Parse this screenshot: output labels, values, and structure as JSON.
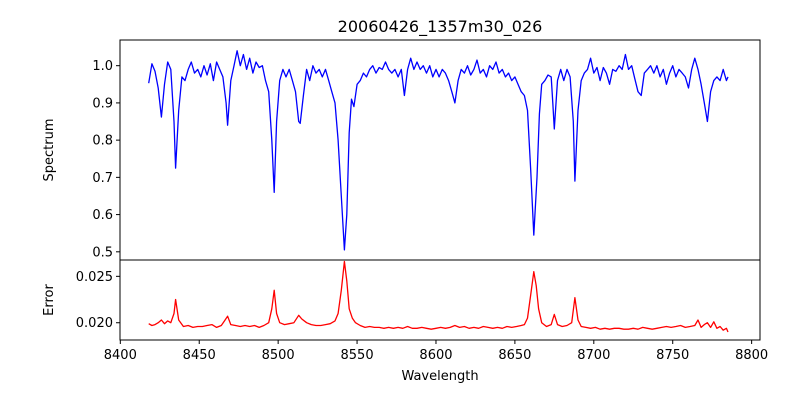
{
  "chart_data": [
    {
      "type": "line",
      "title": "20060426_1357m30_026",
      "xlabel": "",
      "ylabel": "Spectrum",
      "xlim": [
        8399.8,
        8805.3
      ],
      "ylim": [
        0.478,
        1.069
      ],
      "yticks": [
        0.5,
        0.6,
        0.7,
        0.8,
        0.9,
        1.0
      ],
      "ytick_labels": [
        "0.5",
        "0.6",
        "0.7",
        "0.8",
        "0.9",
        "1.0"
      ],
      "grid": false,
      "color": "#0000ff",
      "points": [
        [
          8418,
          0.953
        ],
        [
          8420,
          1.005
        ],
        [
          8422,
          0.985
        ],
        [
          8424,
          0.94
        ],
        [
          8426,
          0.862
        ],
        [
          8428,
          0.95
        ],
        [
          8430,
          1.01
        ],
        [
          8432,
          0.99
        ],
        [
          8434,
          0.85
        ],
        [
          8435,
          0.725
        ],
        [
          8437,
          0.88
        ],
        [
          8439,
          0.97
        ],
        [
          8441,
          0.96
        ],
        [
          8443,
          0.99
        ],
        [
          8445,
          1.01
        ],
        [
          8447,
          0.98
        ],
        [
          8449,
          0.99
        ],
        [
          8451,
          0.97
        ],
        [
          8453,
          1.0
        ],
        [
          8455,
          0.975
        ],
        [
          8457,
          1.005
        ],
        [
          8459,
          0.96
        ],
        [
          8461,
          1.01
        ],
        [
          8463,
          0.99
        ],
        [
          8465,
          0.97
        ],
        [
          8467,
          0.9
        ],
        [
          8468,
          0.84
        ],
        [
          8470,
          0.96
        ],
        [
          8472,
          1.0
        ],
        [
          8474,
          1.04
        ],
        [
          8476,
          1.0
        ],
        [
          8478,
          1.03
        ],
        [
          8480,
          0.99
        ],
        [
          8482,
          1.02
        ],
        [
          8484,
          0.98
        ],
        [
          8486,
          1.01
        ],
        [
          8488,
          0.995
        ],
        [
          8490,
          1.0
        ],
        [
          8492,
          0.96
        ],
        [
          8494,
          0.93
        ],
        [
          8496,
          0.8
        ],
        [
          8497.5,
          0.66
        ],
        [
          8499,
          0.85
        ],
        [
          8501,
          0.96
        ],
        [
          8503,
          0.99
        ],
        [
          8505,
          0.97
        ],
        [
          8507,
          0.99
        ],
        [
          8509,
          0.96
        ],
        [
          8511,
          0.93
        ],
        [
          8513,
          0.85
        ],
        [
          8514,
          0.845
        ],
        [
          8516,
          0.92
        ],
        [
          8518,
          0.99
        ],
        [
          8520,
          0.96
        ],
        [
          8522,
          1.0
        ],
        [
          8524,
          0.98
        ],
        [
          8526,
          0.99
        ],
        [
          8528,
          0.97
        ],
        [
          8530,
          0.99
        ],
        [
          8532,
          0.96
        ],
        [
          8534,
          0.93
        ],
        [
          8536,
          0.9
        ],
        [
          8538,
          0.8
        ],
        [
          8540,
          0.65
        ],
        [
          8542,
          0.505
        ],
        [
          8543.5,
          0.6
        ],
        [
          8545,
          0.82
        ],
        [
          8546.5,
          0.91
        ],
        [
          8548,
          0.89
        ],
        [
          8550,
          0.95
        ],
        [
          8552,
          0.96
        ],
        [
          8554,
          0.98
        ],
        [
          8556,
          0.97
        ],
        [
          8558,
          0.99
        ],
        [
          8560,
          1.0
        ],
        [
          8562,
          0.98
        ],
        [
          8564,
          0.995
        ],
        [
          8566,
          0.99
        ],
        [
          8568,
          1.01
        ],
        [
          8570,
          0.99
        ],
        [
          8572,
          0.98
        ],
        [
          8574,
          0.99
        ],
        [
          8576,
          0.97
        ],
        [
          8578,
          0.99
        ],
        [
          8580,
          0.92
        ],
        [
          8582,
          0.99
        ],
        [
          8584,
          1.02
        ],
        [
          8586,
          0.99
        ],
        [
          8588,
          1.01
        ],
        [
          8590,
          0.99
        ],
        [
          8592,
          1.0
        ],
        [
          8594,
          0.98
        ],
        [
          8596,
          1.0
        ],
        [
          8598,
          0.97
        ],
        [
          8600,
          0.99
        ],
        [
          8602,
          0.97
        ],
        [
          8604,
          0.99
        ],
        [
          8606,
          0.98
        ],
        [
          8608,
          0.96
        ],
        [
          8610,
          0.93
        ],
        [
          8612,
          0.9
        ],
        [
          8614,
          0.96
        ],
        [
          8616,
          0.99
        ],
        [
          8618,
          0.98
        ],
        [
          8620,
          1.0
        ],
        [
          8622,
          0.975
        ],
        [
          8624,
          0.99
        ],
        [
          8626,
          1.015
        ],
        [
          8628,
          0.98
        ],
        [
          8630,
          0.99
        ],
        [
          8632,
          0.97
        ],
        [
          8634,
          1.0
        ],
        [
          8636,
          0.99
        ],
        [
          8638,
          1.01
        ],
        [
          8640,
          0.98
        ],
        [
          8642,
          0.99
        ],
        [
          8644,
          0.97
        ],
        [
          8646,
          0.98
        ],
        [
          8648,
          0.96
        ],
        [
          8650,
          0.97
        ],
        [
          8652,
          0.95
        ],
        [
          8654,
          0.93
        ],
        [
          8656,
          0.92
        ],
        [
          8658,
          0.88
        ],
        [
          8660,
          0.72
        ],
        [
          8662,
          0.545
        ],
        [
          8664,
          0.7
        ],
        [
          8665.5,
          0.87
        ],
        [
          8667,
          0.95
        ],
        [
          8669,
          0.96
        ],
        [
          8671,
          0.975
        ],
        [
          8673,
          0.97
        ],
        [
          8674,
          0.9
        ],
        [
          8675,
          0.83
        ],
        [
          8677,
          0.96
        ],
        [
          8679,
          0.99
        ],
        [
          8681,
          0.96
        ],
        [
          8683,
          0.99
        ],
        [
          8685,
          0.97
        ],
        [
          8687,
          0.85
        ],
        [
          8688,
          0.69
        ],
        [
          8690,
          0.88
        ],
        [
          8692,
          0.96
        ],
        [
          8694,
          0.98
        ],
        [
          8696,
          0.99
        ],
        [
          8698,
          1.02
        ],
        [
          8700,
          0.98
        ],
        [
          8702,
          0.995
        ],
        [
          8704,
          0.96
        ],
        [
          8706,
          0.995
        ],
        [
          8708,
          0.98
        ],
        [
          8710,
          0.95
        ],
        [
          8712,
          0.99
        ],
        [
          8714,
          0.985
        ],
        [
          8716,
          1.0
        ],
        [
          8718,
          0.99
        ],
        [
          8720,
          1.03
        ],
        [
          8722,
          0.99
        ],
        [
          8724,
          1.0
        ],
        [
          8726,
          0.965
        ],
        [
          8728,
          0.93
        ],
        [
          8730,
          0.92
        ],
        [
          8732,
          0.98
        ],
        [
          8734,
          0.99
        ],
        [
          8736,
          1.0
        ],
        [
          8738,
          0.98
        ],
        [
          8740,
          1.0
        ],
        [
          8742,
          0.97
        ],
        [
          8744,
          0.99
        ],
        [
          8746,
          0.95
        ],
        [
          8748,
          0.98
        ],
        [
          8750,
          1.0
        ],
        [
          8752,
          0.97
        ],
        [
          8754,
          0.99
        ],
        [
          8756,
          0.98
        ],
        [
          8758,
          0.97
        ],
        [
          8760,
          0.94
        ],
        [
          8762,
          0.99
        ],
        [
          8764,
          1.02
        ],
        [
          8766,
          0.99
        ],
        [
          8768,
          0.95
        ],
        [
          8770,
          0.9
        ],
        [
          8772,
          0.85
        ],
        [
          8774,
          0.93
        ],
        [
          8776,
          0.96
        ],
        [
          8778,
          0.97
        ],
        [
          8780,
          0.96
        ],
        [
          8782,
          0.99
        ],
        [
          8784,
          0.96
        ],
        [
          8785,
          0.97
        ]
      ]
    },
    {
      "type": "line",
      "title": "",
      "xlabel": "Wavelength",
      "ylabel": "Error",
      "xlim": [
        8399.8,
        8805.3
      ],
      "ylim": [
        0.01814,
        0.02676
      ],
      "xticks": [
        8400,
        8450,
        8500,
        8550,
        8600,
        8650,
        8700,
        8750,
        8800
      ],
      "xtick_labels": [
        "8400",
        "8450",
        "8500",
        "8550",
        "8600",
        "8650",
        "8700",
        "8750",
        "8800"
      ],
      "yticks": [
        0.02,
        0.025
      ],
      "ytick_labels": [
        "0.020",
        "0.025"
      ],
      "grid": false,
      "color": "#ff0000",
      "points": [
        [
          8418,
          0.0199
        ],
        [
          8420,
          0.0197
        ],
        [
          8422,
          0.0198
        ],
        [
          8424,
          0.02
        ],
        [
          8426,
          0.0203
        ],
        [
          8428,
          0.0199
        ],
        [
          8430,
          0.0202
        ],
        [
          8432,
          0.02
        ],
        [
          8434,
          0.021
        ],
        [
          8435,
          0.0225
        ],
        [
          8437,
          0.0203
        ],
        [
          8440,
          0.0196
        ],
        [
          8443,
          0.0197
        ],
        [
          8446,
          0.0195
        ],
        [
          8449,
          0.0196
        ],
        [
          8452,
          0.0196
        ],
        [
          8455,
          0.0197
        ],
        [
          8458,
          0.0198
        ],
        [
          8461,
          0.0195
        ],
        [
          8464,
          0.0197
        ],
        [
          8466,
          0.0202
        ],
        [
          8468,
          0.0207
        ],
        [
          8470,
          0.0198
        ],
        [
          8473,
          0.0197
        ],
        [
          8476,
          0.0196
        ],
        [
          8479,
          0.0197
        ],
        [
          8482,
          0.0196
        ],
        [
          8485,
          0.0197
        ],
        [
          8488,
          0.0195
        ],
        [
          8491,
          0.0197
        ],
        [
          8494,
          0.02
        ],
        [
          8496,
          0.0215
        ],
        [
          8497.5,
          0.0235
        ],
        [
          8499,
          0.021
        ],
        [
          8501,
          0.02
        ],
        [
          8504,
          0.0198
        ],
        [
          8507,
          0.0199
        ],
        [
          8510,
          0.02
        ],
        [
          8513,
          0.0208
        ],
        [
          8515,
          0.0204
        ],
        [
          8518,
          0.02
        ],
        [
          8521,
          0.0198
        ],
        [
          8524,
          0.0197
        ],
        [
          8527,
          0.0197
        ],
        [
          8530,
          0.0198
        ],
        [
          8533,
          0.0199
        ],
        [
          8536,
          0.0202
        ],
        [
          8538,
          0.021
        ],
        [
          8540,
          0.0235
        ],
        [
          8542,
          0.0266
        ],
        [
          8543.5,
          0.0245
        ],
        [
          8545,
          0.0215
        ],
        [
          8547,
          0.0205
        ],
        [
          8549,
          0.02
        ],
        [
          8552,
          0.0197
        ],
        [
          8555,
          0.0195
        ],
        [
          8558,
          0.0196
        ],
        [
          8561,
          0.0195
        ],
        [
          8564,
          0.0195
        ],
        [
          8567,
          0.0194
        ],
        [
          8570,
          0.0195
        ],
        [
          8573,
          0.0194
        ],
        [
          8576,
          0.0195
        ],
        [
          8579,
          0.0194
        ],
        [
          8582,
          0.0196
        ],
        [
          8585,
          0.0194
        ],
        [
          8588,
          0.0194
        ],
        [
          8591,
          0.0195
        ],
        [
          8594,
          0.0194
        ],
        [
          8597,
          0.0193
        ],
        [
          8600,
          0.0194
        ],
        [
          8603,
          0.0195
        ],
        [
          8606,
          0.0194
        ],
        [
          8609,
          0.0195
        ],
        [
          8612,
          0.0197
        ],
        [
          8615,
          0.0195
        ],
        [
          8618,
          0.0196
        ],
        [
          8621,
          0.0194
        ],
        [
          8624,
          0.0195
        ],
        [
          8627,
          0.0194
        ],
        [
          8630,
          0.0196
        ],
        [
          8633,
          0.0195
        ],
        [
          8636,
          0.0194
        ],
        [
          8639,
          0.0195
        ],
        [
          8642,
          0.0194
        ],
        [
          8645,
          0.0196
        ],
        [
          8648,
          0.0195
        ],
        [
          8651,
          0.0196
        ],
        [
          8654,
          0.0197
        ],
        [
          8656,
          0.0198
        ],
        [
          8658,
          0.0205
        ],
        [
          8660,
          0.023
        ],
        [
          8662,
          0.0255
        ],
        [
          8663.5,
          0.024
        ],
        [
          8665,
          0.0215
        ],
        [
          8667,
          0.02
        ],
        [
          8670,
          0.0196
        ],
        [
          8673,
          0.0198
        ],
        [
          8675,
          0.0209
        ],
        [
          8677,
          0.0198
        ],
        [
          8680,
          0.0196
        ],
        [
          8683,
          0.0197
        ],
        [
          8686,
          0.02
        ],
        [
          8688,
          0.0227
        ],
        [
          8690,
          0.0203
        ],
        [
          8692,
          0.0196
        ],
        [
          8695,
          0.0195
        ],
        [
          8698,
          0.0194
        ],
        [
          8701,
          0.0195
        ],
        [
          8704,
          0.0193
        ],
        [
          8707,
          0.0194
        ],
        [
          8710,
          0.0193
        ],
        [
          8713,
          0.0194
        ],
        [
          8716,
          0.0194
        ],
        [
          8719,
          0.0193
        ],
        [
          8722,
          0.0193
        ],
        [
          8725,
          0.0194
        ],
        [
          8728,
          0.0193
        ],
        [
          8731,
          0.0195
        ],
        [
          8734,
          0.0194
        ],
        [
          8737,
          0.0193
        ],
        [
          8740,
          0.0194
        ],
        [
          8743,
          0.0195
        ],
        [
          8746,
          0.0196
        ],
        [
          8749,
          0.0195
        ],
        [
          8752,
          0.0196
        ],
        [
          8755,
          0.0197
        ],
        [
          8758,
          0.0195
        ],
        [
          8761,
          0.0196
        ],
        [
          8764,
          0.0197
        ],
        [
          8766,
          0.0203
        ],
        [
          8768,
          0.0195
        ],
        [
          8770,
          0.0198
        ],
        [
          8772,
          0.02
        ],
        [
          8774,
          0.0195
        ],
        [
          8776,
          0.0201
        ],
        [
          8778,
          0.0194
        ],
        [
          8780,
          0.0196
        ],
        [
          8782,
          0.0192
        ],
        [
          8784,
          0.0194
        ],
        [
          8785,
          0.019
        ]
      ]
    }
  ]
}
